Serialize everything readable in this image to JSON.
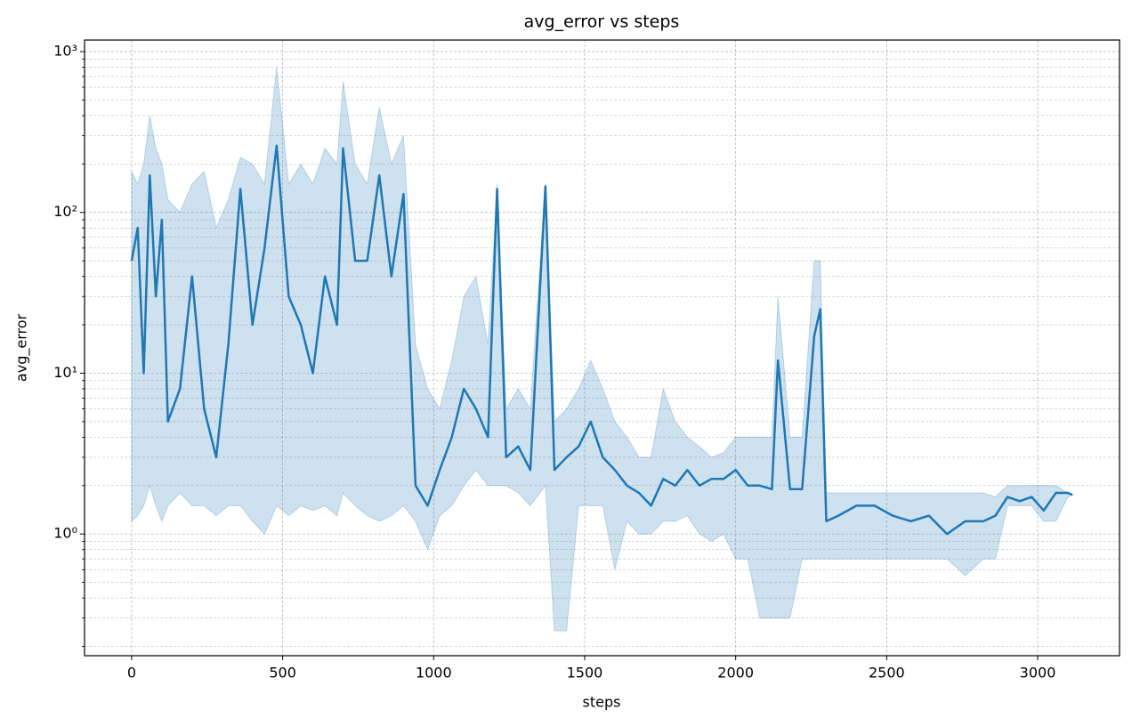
{
  "chart_data": {
    "type": "line",
    "title": "avg_error vs steps",
    "x_label": "steps",
    "y_label": "avg_error",
    "xlim": [
      -156,
      3271
    ],
    "xticks": [
      0,
      500,
      1000,
      1500,
      2000,
      2500,
      3000
    ],
    "ylim": [
      0.175,
      1180
    ],
    "yscale": "log",
    "yticks": [
      {
        "value": 1,
        "label": "10⁰"
      },
      {
        "value": 10,
        "label": "10¹"
      },
      {
        "value": 100,
        "label": "10²"
      },
      {
        "value": 1000,
        "label": "10³"
      }
    ],
    "yminorticks": [
      0.2,
      0.3,
      0.4,
      0.5,
      0.6,
      0.7,
      0.8,
      0.9,
      2,
      3,
      4,
      5,
      6,
      7,
      8,
      9,
      20,
      30,
      40,
      50,
      60,
      70,
      80,
      90,
      200,
      300,
      400,
      500,
      600,
      700,
      800,
      900
    ],
    "grid": true,
    "x": [
      0,
      20,
      40,
      60,
      80,
      100,
      120,
      160,
      200,
      240,
      280,
      320,
      360,
      400,
      440,
      480,
      520,
      560,
      600,
      640,
      680,
      700,
      740,
      780,
      820,
      860,
      900,
      940,
      980,
      1020,
      1060,
      1100,
      1140,
      1180,
      1210,
      1240,
      1280,
      1320,
      1370,
      1400,
      1440,
      1480,
      1520,
      1560,
      1600,
      1640,
      1680,
      1720,
      1760,
      1800,
      1840,
      1880,
      1920,
      1960,
      2000,
      2040,
      2080,
      2120,
      2140,
      2180,
      2220,
      2260,
      2280,
      2300,
      2340,
      2400,
      2460,
      2520,
      2580,
      2640,
      2700,
      2760,
      2820,
      2860,
      2900,
      2940,
      2980,
      3020,
      3060,
      3100,
      3115
    ],
    "series": [
      {
        "color": "#1f77b4",
        "values": [
          50,
          80,
          10,
          170,
          30,
          90,
          5,
          8,
          40,
          6,
          3,
          15,
          140,
          20,
          60,
          260,
          30,
          20,
          10,
          40,
          20,
          250,
          50,
          50,
          170,
          40,
          130,
          2,
          1.5,
          2.5,
          4,
          8,
          6,
          4,
          140,
          3,
          3.5,
          2.5,
          145,
          2.5,
          3,
          3.5,
          5,
          3,
          2.5,
          2,
          1.8,
          1.5,
          2.2,
          2,
          2.5,
          2,
          2.2,
          2.2,
          2.5,
          2,
          2,
          1.9,
          12,
          1.9,
          1.9,
          17,
          25,
          1.2,
          1.3,
          1.5,
          1.5,
          1.3,
          1.2,
          1.3,
          1,
          1.2,
          1.2,
          1.3,
          1.7,
          1.6,
          1.7,
          1.4,
          1.8,
          1.8,
          1.75
        ]
      }
    ],
    "band": {
      "color": "#1f77b4",
      "lower": [
        1.2,
        1.3,
        1.5,
        2,
        1.5,
        1.2,
        1.5,
        1.8,
        1.5,
        1.5,
        1.3,
        1.5,
        1.5,
        1.2,
        1,
        1.5,
        1.3,
        1.5,
        1.4,
        1.5,
        1.3,
        1.8,
        1.5,
        1.3,
        1.2,
        1.3,
        1.5,
        1.2,
        0.8,
        1.3,
        1.5,
        2,
        2.5,
        2,
        2,
        2,
        1.8,
        1.5,
        2,
        0.25,
        0.25,
        1.5,
        1.5,
        1.5,
        0.6,
        1.2,
        1,
        1,
        1.2,
        1.2,
        1.3,
        1,
        0.9,
        1,
        0.7,
        0.7,
        0.3,
        0.3,
        0.3,
        0.3,
        0.7,
        0.7,
        0.7,
        0.7,
        0.7,
        0.7,
        0.7,
        0.7,
        0.7,
        0.7,
        0.7,
        0.55,
        0.7,
        0.7,
        1.5,
        1.5,
        1.5,
        1.2,
        1.2,
        1.7,
        1.75
      ],
      "upper": [
        180,
        150,
        200,
        400,
        250,
        200,
        120,
        100,
        150,
        180,
        80,
        120,
        220,
        200,
        150,
        800,
        150,
        200,
        150,
        250,
        200,
        650,
        200,
        150,
        450,
        200,
        300,
        15,
        8,
        6,
        12,
        30,
        40,
        15,
        150,
        6,
        8,
        6,
        150,
        5,
        6,
        8,
        12,
        8,
        5,
        4,
        3,
        3,
        8,
        5,
        4,
        3.5,
        3,
        3.2,
        4,
        4,
        4,
        4,
        30,
        4,
        4,
        50,
        50,
        1.8,
        1.8,
        1.8,
        1.8,
        1.8,
        1.8,
        1.8,
        1.8,
        1.8,
        1.8,
        1.7,
        2,
        2,
        2,
        2,
        2,
        1.8,
        1.75
      ]
    }
  }
}
